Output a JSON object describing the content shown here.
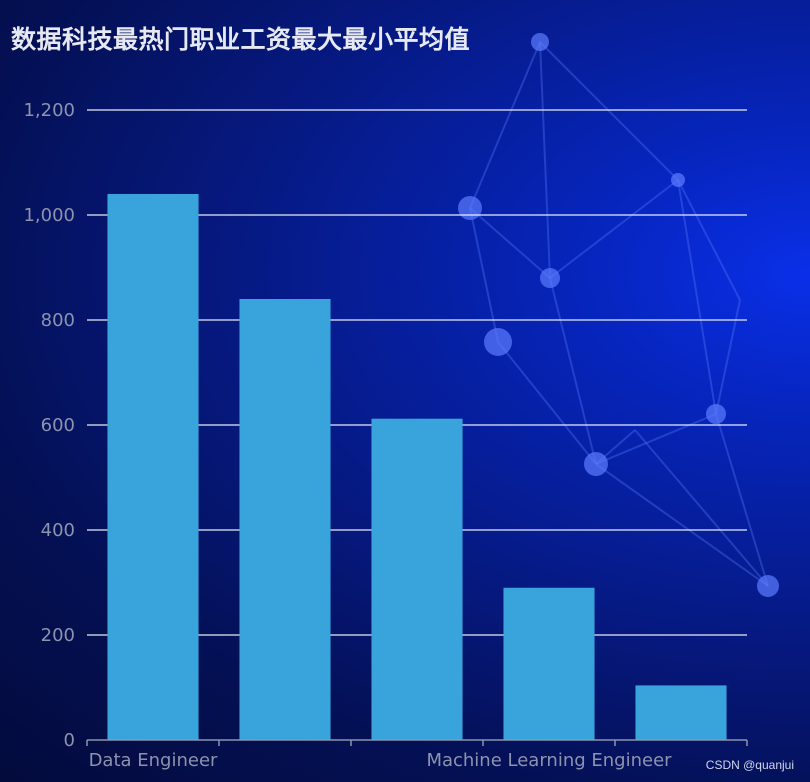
{
  "chart_title": "数据科技最热门职业工资最大最小平均值",
  "watermark": "CSDN @quanjui",
  "colors": {
    "bar": "#39a4dc",
    "grid": "#e8ecf5",
    "axis": "#8c93ad"
  },
  "chart_data": {
    "type": "bar",
    "title": "数据科技最热门职业工资最大最小平均值",
    "categories": [
      "Data Engineer",
      "",
      "",
      "Machine Learning Engineer",
      ""
    ],
    "tick_labels_shown": [
      "Data Engineer",
      "Machine Learning Engineer"
    ],
    "values": [
      1040,
      840,
      612,
      290,
      104
    ],
    "ylim": [
      0,
      1200
    ],
    "yticks": [
      "0",
      "200",
      "400",
      "600",
      "800",
      "1,000",
      "1,200"
    ],
    "ytick_values": [
      0,
      200,
      400,
      600,
      800,
      1000,
      1200
    ],
    "xlabel": "",
    "ylabel": "",
    "grid": true,
    "legend": "none"
  }
}
